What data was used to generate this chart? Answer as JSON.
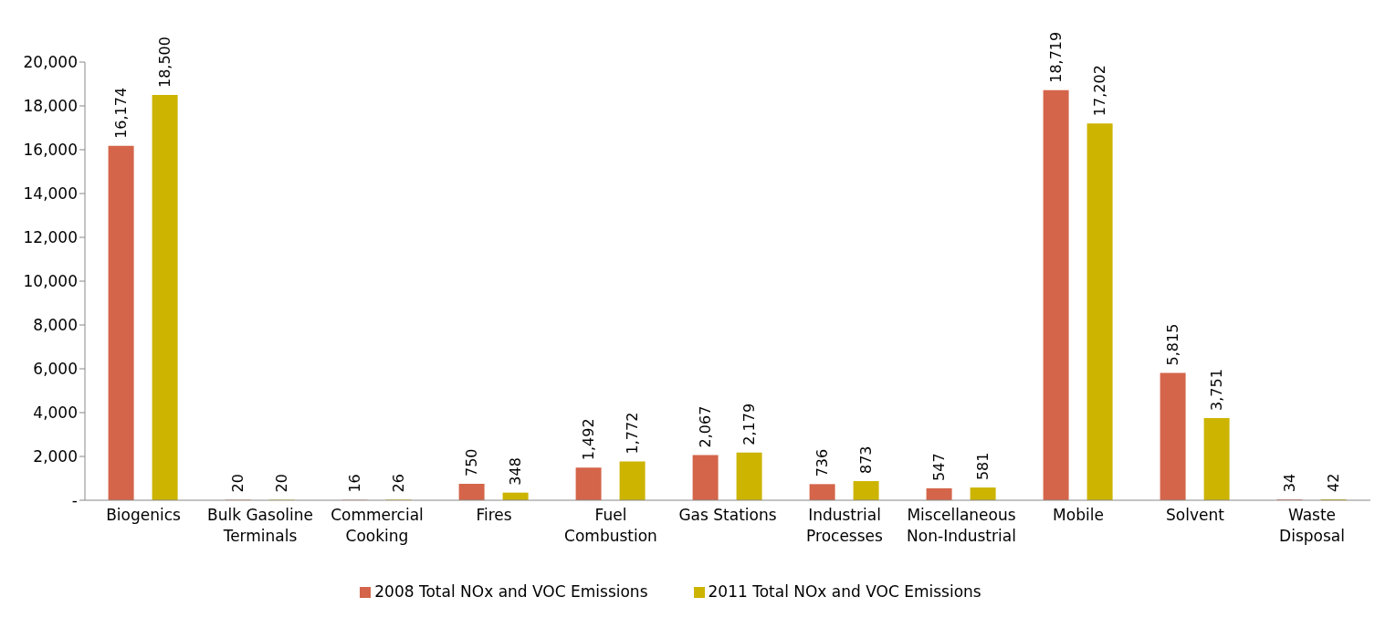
{
  "chart_data": {
    "type": "bar",
    "categories": [
      "Biogenics",
      "Bulk Gasoline Terminals",
      "Commercial Cooking",
      "Fires",
      "Fuel Combustion",
      "Gas Stations",
      "Industrial Processes",
      "Miscellaneous Non-Industrial",
      "Mobile",
      "Solvent",
      "Waste Disposal"
    ],
    "series": [
      {
        "name": "2008 Total NOx and VOC Emissions",
        "color": "#d4654a",
        "values": [
          16174,
          20,
          16,
          750,
          1492,
          2067,
          736,
          547,
          18719,
          5815,
          34
        ],
        "value_labels": [
          "16,174",
          "20",
          "16",
          "750",
          "1,492",
          "2,067",
          "736",
          "547",
          "18,719",
          "5,815",
          "34"
        ]
      },
      {
        "name": "2011 Total NOx and VOC Emissions",
        "color": "#ccb400",
        "values": [
          18500,
          20,
          26,
          348,
          1772,
          2179,
          873,
          581,
          17202,
          3751,
          42
        ],
        "value_labels": [
          "18,500",
          "20",
          "26",
          "348",
          "1,772",
          "2,179",
          "873",
          "581",
          "17,202",
          "3,751",
          "42"
        ]
      }
    ],
    "ylim": [
      0,
      20000
    ],
    "yticks": [
      {
        "value": 0,
        "label": "-"
      },
      {
        "value": 2000,
        "label": "2,000"
      },
      {
        "value": 4000,
        "label": "4,000"
      },
      {
        "value": 6000,
        "label": "6,000"
      },
      {
        "value": 8000,
        "label": "8,000"
      },
      {
        "value": 10000,
        "label": "10,000"
      },
      {
        "value": 12000,
        "label": "12,000"
      },
      {
        "value": 14000,
        "label": "14,000"
      },
      {
        "value": 16000,
        "label": "16,000"
      },
      {
        "value": 18000,
        "label": "18,000"
      },
      {
        "value": 20000,
        "label": "20,000"
      }
    ],
    "grid": false,
    "legend": "bottom"
  }
}
